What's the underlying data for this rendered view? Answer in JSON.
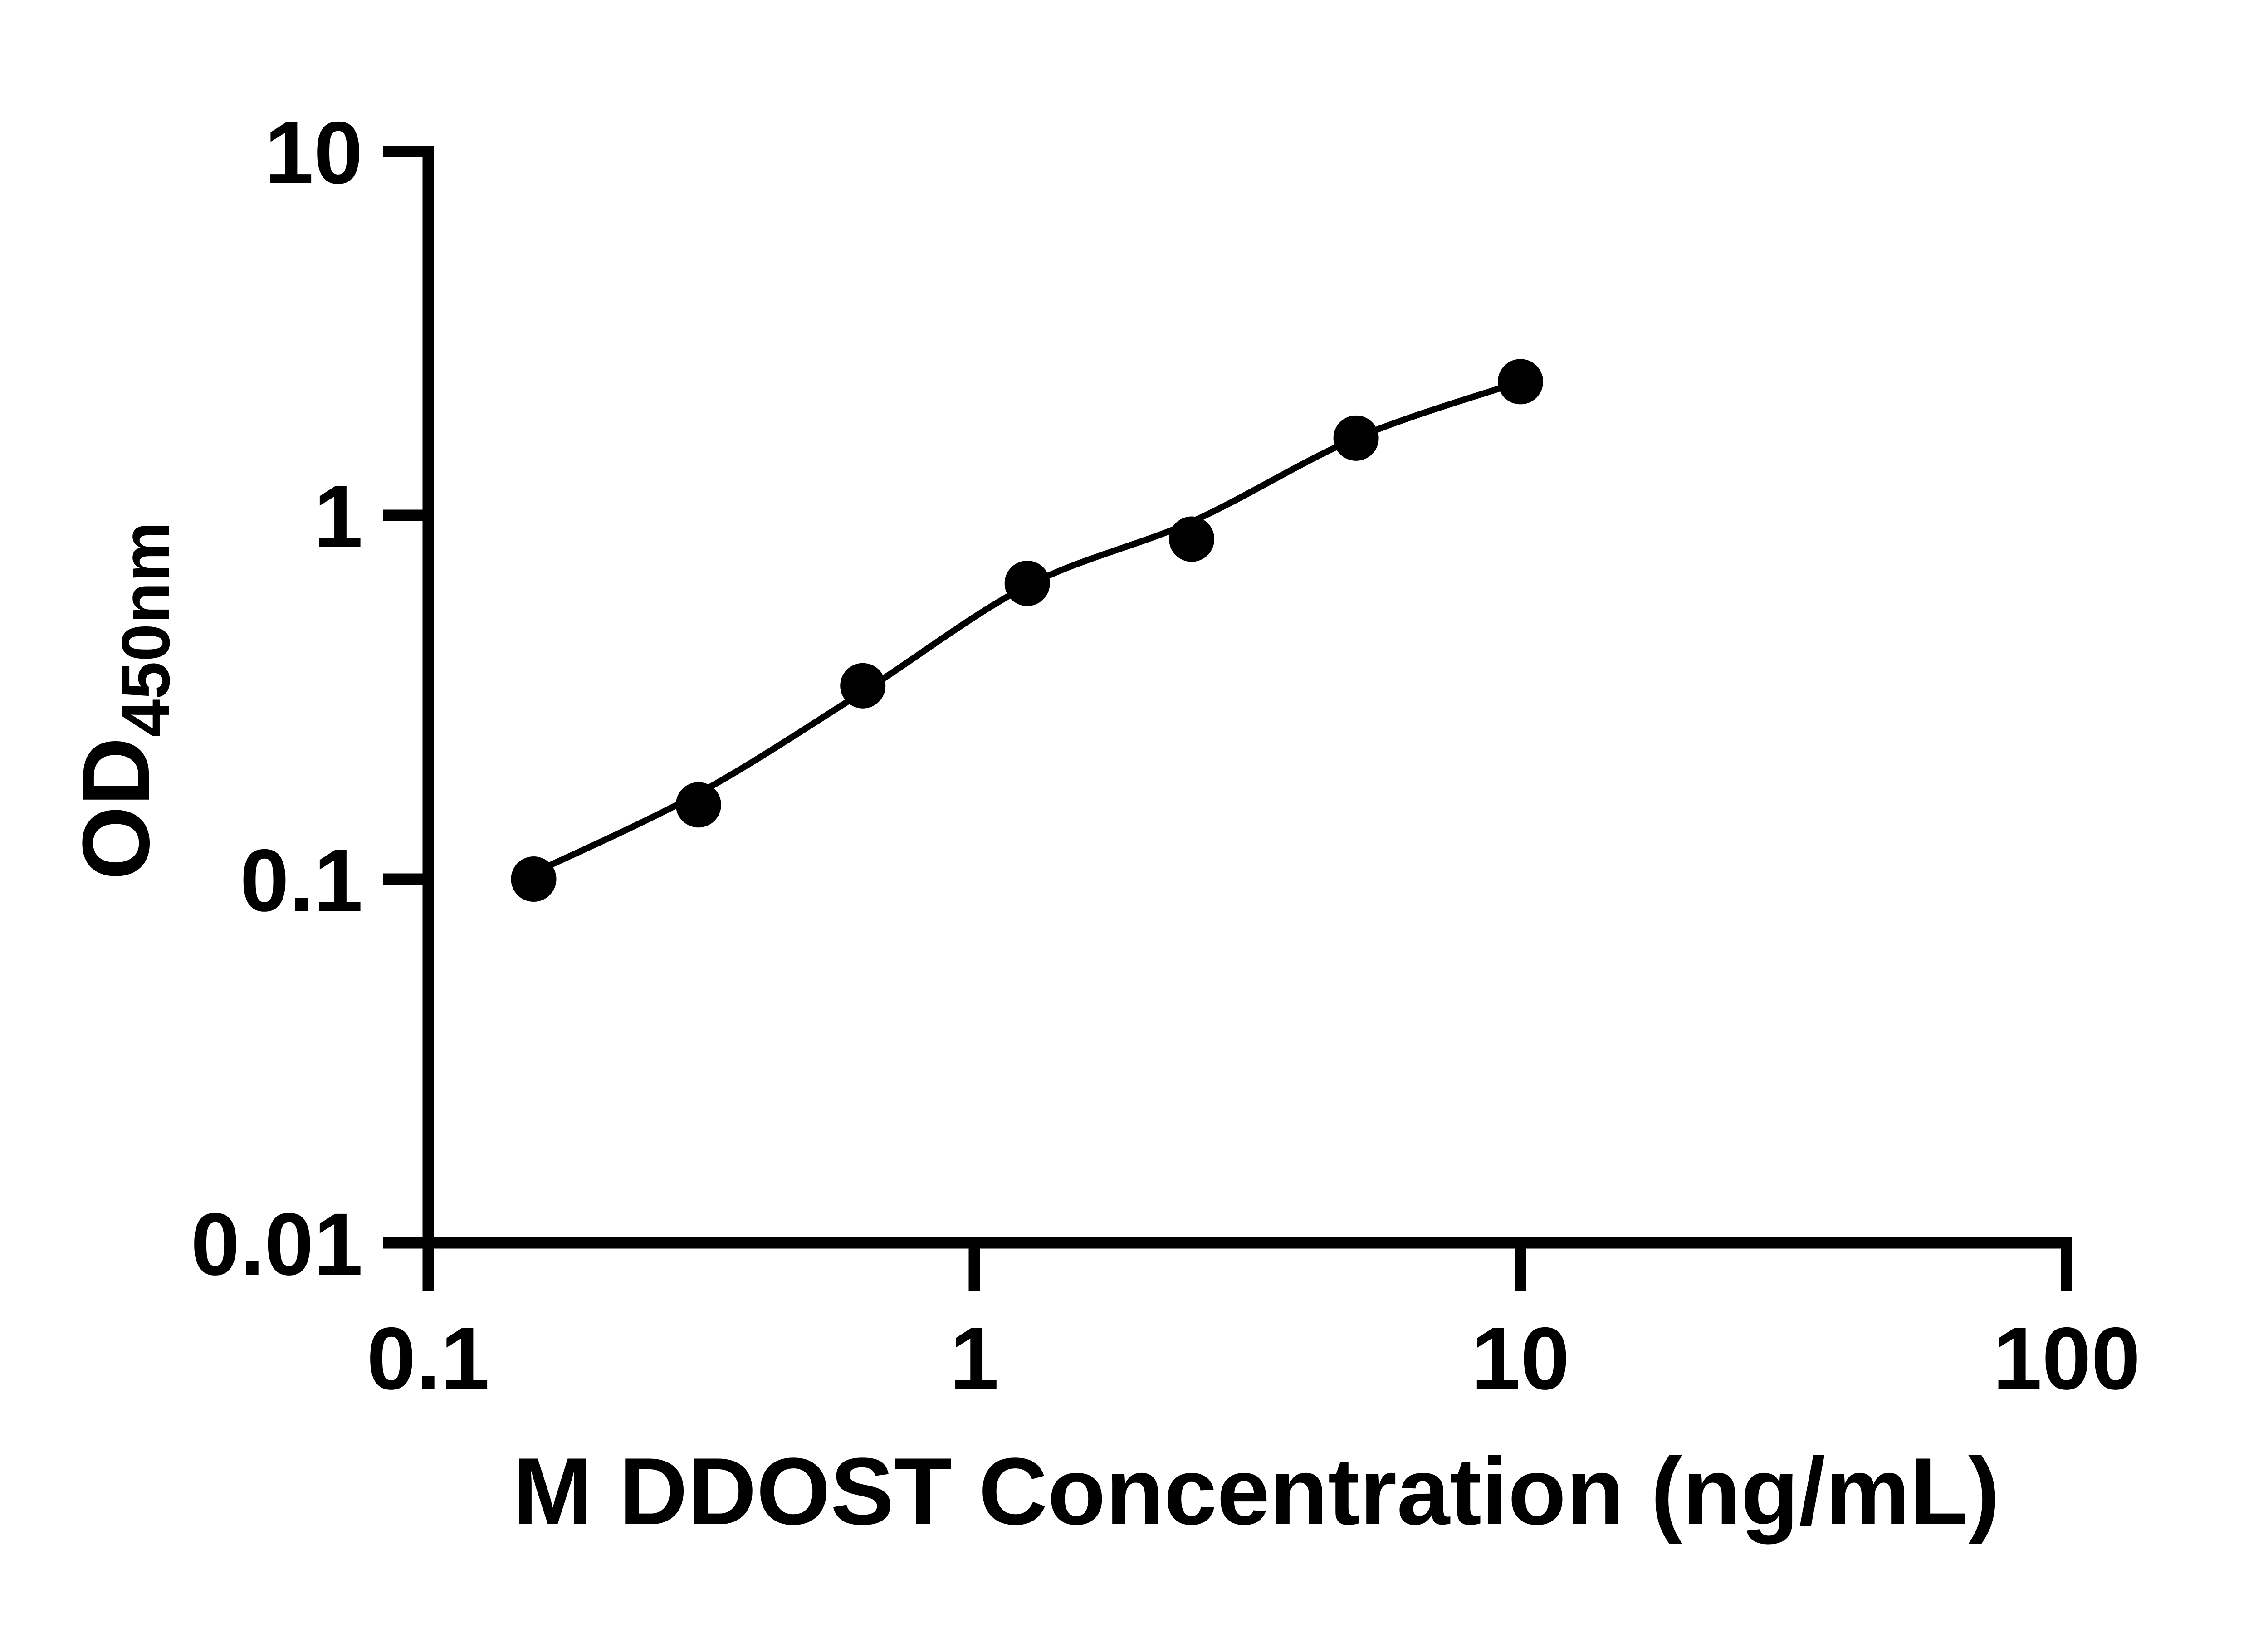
{
  "figure": {
    "background_color": "#ffffff",
    "ink_color": "#000000"
  },
  "chart_data": {
    "type": "scatter",
    "subtype": "ELISA standard curve, log-log axes with fitted curve",
    "xlabel": "M DDOST Concentration (ng/mL)",
    "ylabel_main": "OD",
    "ylabel_sub": "450nm",
    "x_scale": "log10",
    "y_scale": "log10",
    "xlim": [
      0.1,
      100
    ],
    "ylim": [
      0.01,
      10
    ],
    "grid": "off",
    "legend": "none",
    "x_ticks": [
      0.1,
      1,
      10,
      100
    ],
    "x_tick_labels": [
      "0.1",
      "1",
      "10",
      "100"
    ],
    "y_ticks": [
      10,
      1,
      0.1,
      0.01
    ],
    "y_tick_labels": [
      "10",
      "1",
      "0.1",
      "0.01"
    ],
    "marker": "filled-circle",
    "marker_color": "#000000",
    "line_color": "#000000",
    "points": {
      "x": [
        0.156,
        0.3125,
        0.625,
        1.25,
        2.5,
        5,
        10
      ],
      "od": [
        0.1,
        0.16,
        0.34,
        0.65,
        0.86,
        1.63,
        2.33
      ]
    },
    "fit_curve": {
      "x": [
        0.156,
        0.3125,
        0.625,
        1.25,
        2.5,
        5,
        10
      ],
      "od": [
        0.104,
        0.172,
        0.327,
        0.64,
        0.96,
        1.63,
        2.33
      ]
    }
  }
}
